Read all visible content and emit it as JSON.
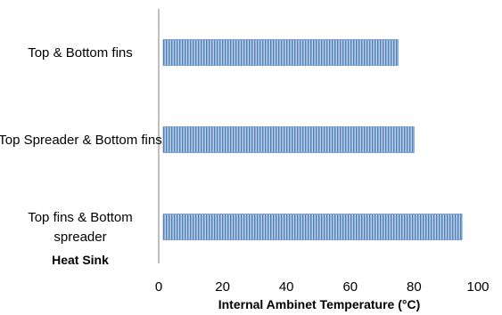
{
  "chart_data": {
    "type": "bar",
    "orientation": "horizontal",
    "categories": [
      "Top & Bottom fins",
      "Top Spreader & Bottom fins",
      "Top fins & Bottom spreader"
    ],
    "category_lines": [
      [
        "Top & Bottom fins"
      ],
      [
        "Top Spreader & Bottom fins"
      ],
      [
        "Top fins & Bottom",
        "spreader"
      ]
    ],
    "values": [
      75,
      80,
      95
    ],
    "xlabel": "Internal Ambinet Temperature (°C)",
    "ylabel": "Heat Sink",
    "xlim": [
      0,
      100
    ],
    "xticks": [
      "0",
      "20",
      "40",
      "60",
      "80",
      "100"
    ],
    "grid": false,
    "legend": "none",
    "bar_color": "#4f81bd",
    "bar_pattern": "vertical-stripes"
  }
}
